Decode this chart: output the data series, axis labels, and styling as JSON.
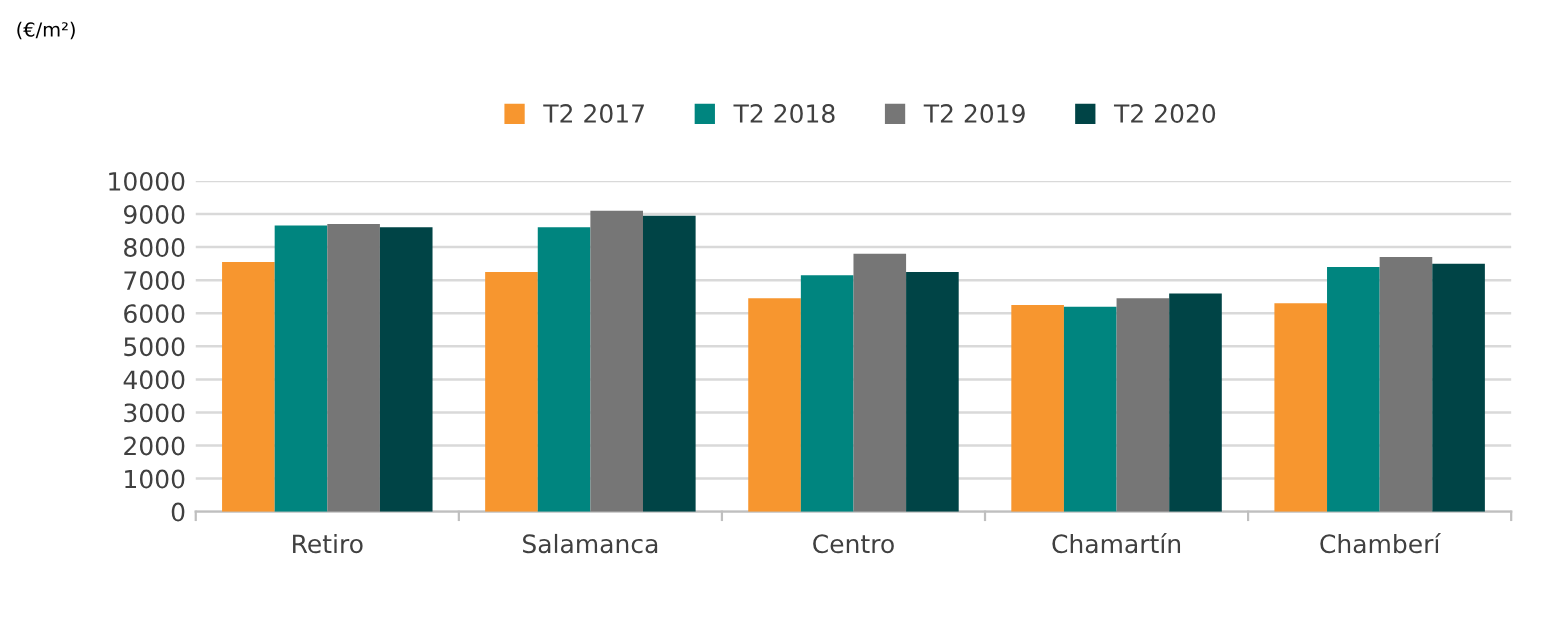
{
  "chart_data": {
    "type": "bar",
    "annotations": [
      "(€/m²)"
    ],
    "categories": [
      "Retiro",
      "Salamanca",
      "Centro",
      "Chamartín",
      "Chamberí"
    ],
    "series": [
      {
        "name": "T2 2017",
        "color": "#f7962f",
        "values": [
          7550,
          7250,
          6450,
          6250,
          6300
        ]
      },
      {
        "name": "T2 2018",
        "color": "#00857f",
        "values": [
          8650,
          8600,
          7150,
          6200,
          7400
        ]
      },
      {
        "name": "T2 2019",
        "color": "#767676",
        "values": [
          8700,
          9100,
          7800,
          6450,
          7700
        ]
      },
      {
        "name": "T2 2020",
        "color": "#004446",
        "values": [
          8600,
          8950,
          7250,
          6600,
          7500
        ]
      }
    ],
    "ylim": [
      0,
      10000
    ],
    "yticks": [
      0,
      1000,
      2000,
      3000,
      4000,
      5000,
      6000,
      7000,
      8000,
      9000,
      10000
    ],
    "grid": "y",
    "legend": "top"
  }
}
